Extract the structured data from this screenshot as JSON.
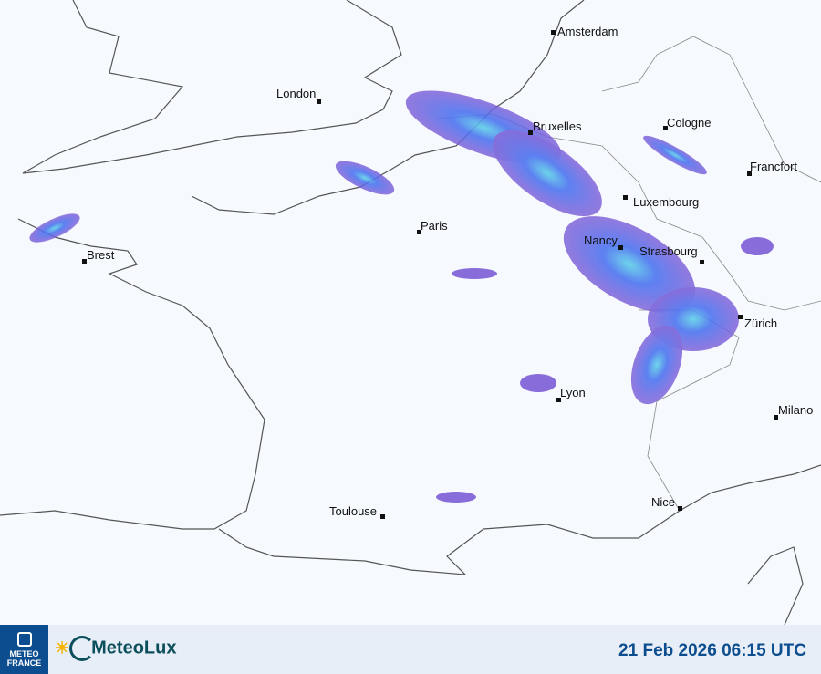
{
  "cities": [
    {
      "name": "Amsterdam"
    },
    {
      "name": "London"
    },
    {
      "name": "Bruxelles"
    },
    {
      "name": "Cologne"
    },
    {
      "name": "Francfort"
    },
    {
      "name": "Luxembourg"
    },
    {
      "name": "Paris"
    },
    {
      "name": "Nancy"
    },
    {
      "name": "Strasbourg"
    },
    {
      "name": "Brest"
    },
    {
      "name": "Zürich"
    },
    {
      "name": "Lyon"
    },
    {
      "name": "Milano"
    },
    {
      "name": "Nice"
    },
    {
      "name": "Toulouse"
    }
  ],
  "footer": {
    "provider_logo": "METEO FRANCE",
    "brand": "MeteoLux",
    "timestamp": "21 Feb 2026 06:15 UTC"
  },
  "colors": {
    "radar_light": "#7b5cd6",
    "radar_mid": "#4c6ef0",
    "radar_high": "#3fc3e6",
    "footer_text": "#0b4d8e"
  }
}
